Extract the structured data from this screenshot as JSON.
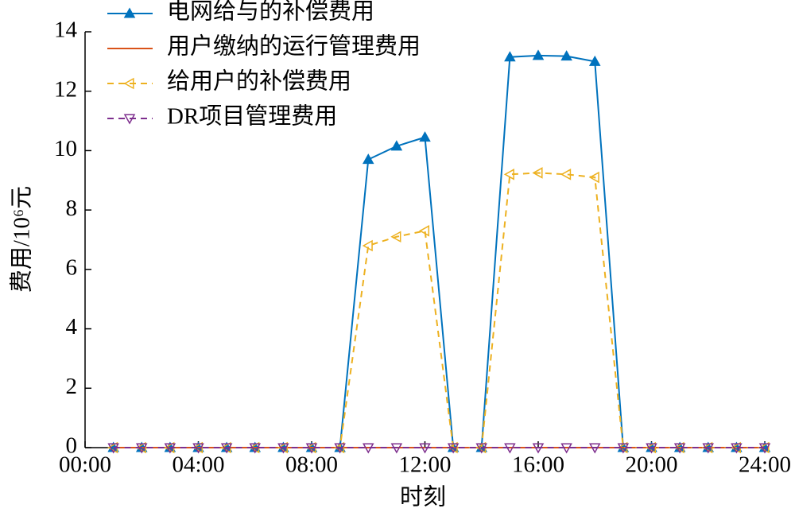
{
  "chart_data": {
    "type": "line",
    "ylabel": "费用/10⁶元",
    "xlabel": "时刻",
    "x": [
      1,
      2,
      3,
      4,
      5,
      6,
      7,
      8,
      9,
      10,
      11,
      12,
      13,
      14,
      15,
      16,
      17,
      18,
      19,
      20,
      21,
      22,
      23,
      24
    ],
    "xlim": [
      0,
      24
    ],
    "xticks": [
      {
        "value": 0,
        "label": "00:00"
      },
      {
        "value": 4,
        "label": "04:00"
      },
      {
        "value": 8,
        "label": "08:00"
      },
      {
        "value": 12,
        "label": "12:00"
      },
      {
        "value": 16,
        "label": "16:00"
      },
      {
        "value": 20,
        "label": "20:00"
      },
      {
        "value": 24,
        "label": "24:00"
      }
    ],
    "ylim": [
      0,
      14
    ],
    "yticks": [
      0,
      2,
      4,
      6,
      8,
      10,
      12,
      14
    ],
    "legend": "upper left",
    "series": [
      {
        "name": "电网给与的补偿费用",
        "color": "#0072bd",
        "marker": "triangle-up",
        "linestyle": "solid",
        "values": [
          0,
          0,
          0,
          0,
          0,
          0,
          0,
          0,
          0,
          9.7,
          10.15,
          10.45,
          0,
          0,
          13.15,
          13.2,
          13.18,
          13.0,
          0,
          0,
          0,
          0,
          0,
          0
        ]
      },
      {
        "name": "用户缴纳的运行管理费用",
        "color": "#d95319",
        "marker": "none",
        "linestyle": "solid",
        "values": [
          0,
          0,
          0,
          0,
          0,
          0,
          0,
          0,
          0,
          0,
          0,
          0,
          0,
          0,
          0,
          0,
          0,
          0,
          0,
          0,
          0,
          0,
          0,
          0
        ]
      },
      {
        "name": "给用户的补偿费用",
        "color": "#edb120",
        "marker": "triangle-left",
        "linestyle": "dashed",
        "values": [
          0,
          0,
          0,
          0,
          0,
          0,
          0,
          0,
          0,
          6.8,
          7.1,
          7.3,
          0,
          0,
          9.2,
          9.25,
          9.2,
          9.1,
          0,
          0,
          0,
          0,
          0,
          0
        ]
      },
      {
        "name": "DR项目管理费用",
        "color": "#7e2f8e",
        "marker": "triangle-down",
        "linestyle": "dashed",
        "values": [
          0,
          0,
          0,
          0,
          0,
          0,
          0,
          0,
          0,
          0,
          0,
          0,
          0,
          0,
          0,
          0,
          0,
          0,
          0,
          0,
          0,
          0,
          0,
          0
        ]
      }
    ]
  }
}
